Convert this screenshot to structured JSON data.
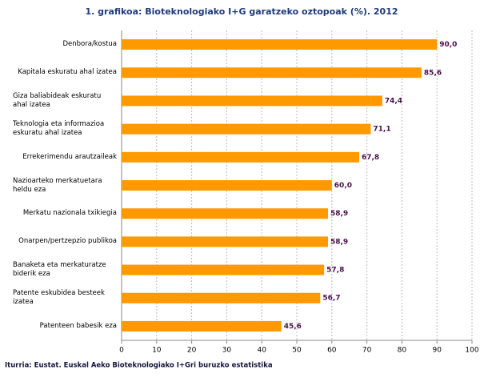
{
  "chart_data": {
    "type": "bar",
    "orientation": "horizontal",
    "title": "1. grafikoa: Bioteknologiako I+G garatzeko oztopoak (%). 2012",
    "source": "Iturria: Eustat. Euskal Aeko Bioteknologiako I+Gri buruzko estatistika",
    "categories": [
      "Denbora/kostua",
      "Kapitala eskuratu ahal izatea",
      "Giza baliabideak eskuratu ahal izatea",
      "Teknologia eta informazioa eskuratu ahal izatea",
      "Errekerimendu arautzaileak",
      "Nazioarteko merkatuetara heldu eza",
      "Merkatu nazionala txikiegia",
      "Onarpen/pertzepzio publikoa",
      "Banaketa eta merkaturatze biderik eza",
      "Patente eskubidea besteek izatea",
      "Patenteen babesik eza"
    ],
    "values": [
      90.0,
      85.6,
      74.4,
      71.1,
      67.8,
      60.0,
      58.9,
      58.9,
      57.8,
      56.7,
      45.6
    ],
    "value_labels": [
      "90,0",
      "85,6",
      "74,4",
      "71,1",
      "67,8",
      "60,0",
      "58,9",
      "58,9",
      "57,8",
      "56,7",
      "45,6"
    ],
    "color": "#ff9900",
    "xlim": [
      0,
      100
    ],
    "xticks": [
      0,
      10,
      20,
      30,
      40,
      50,
      60,
      70,
      80,
      90,
      100
    ],
    "grid": true
  }
}
